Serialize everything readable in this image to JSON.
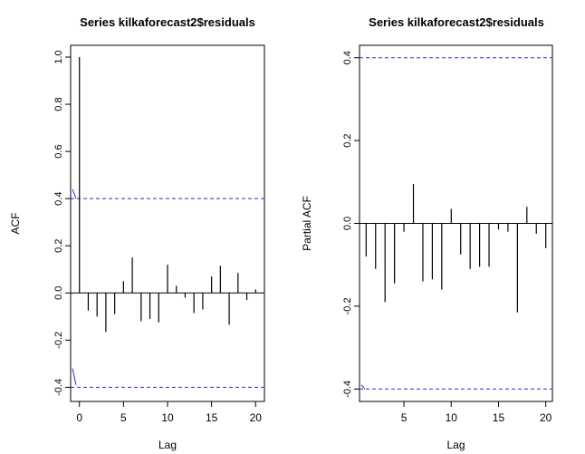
{
  "chart_data": [
    {
      "type": "bar",
      "title": "Series  kilkaforecast2$residuals",
      "xlabel": "Lag",
      "ylabel": "ACF",
      "xlim": [
        -1,
        21
      ],
      "ylim": [
        -0.46,
        1.05
      ],
      "x_ticks": [
        0,
        5,
        10,
        15,
        20
      ],
      "y_ticks": [
        -0.4,
        -0.2,
        0.0,
        0.2,
        0.4,
        0.6,
        0.8,
        1.0
      ],
      "y_tick_labels": [
        "-0.4",
        "-0.2",
        "0.0",
        "0.2",
        "0.4",
        "0.6",
        "0.8",
        "1.0"
      ],
      "confidence_bounds": [
        0.4,
        -0.4
      ],
      "lags": [
        0,
        1,
        2,
        3,
        4,
        5,
        6,
        7,
        8,
        9,
        10,
        11,
        12,
        13,
        14,
        15,
        16,
        17,
        18,
        19,
        20
      ],
      "values": [
        1.0,
        -0.075,
        -0.1,
        -0.165,
        -0.09,
        0.05,
        0.15,
        -0.12,
        -0.11,
        -0.125,
        0.12,
        0.03,
        -0.02,
        -0.085,
        -0.07,
        0.07,
        0.115,
        -0.135,
        0.085,
        -0.03,
        0.015
      ],
      "colors": {
        "bounds": "#2b2bd6",
        "bars": "#000000"
      }
    },
    {
      "type": "bar",
      "title": "Series  kilkaforecast2$residuals",
      "xlabel": "Lag",
      "ylabel": "Partial ACF",
      "xlim": [
        0.3,
        20.7
      ],
      "ylim": [
        -0.43,
        0.43
      ],
      "x_ticks": [
        5,
        10,
        15,
        20
      ],
      "y_ticks": [
        -0.4,
        -0.2,
        0.0,
        0.2,
        0.4
      ],
      "y_tick_labels": [
        "-0.4",
        "-0.2",
        "0.0",
        "0.2",
        "0.4"
      ],
      "confidence_bounds": [
        0.4,
        -0.4
      ],
      "lags": [
        1,
        2,
        3,
        4,
        5,
        6,
        7,
        8,
        9,
        10,
        11,
        12,
        13,
        14,
        15,
        16,
        17,
        18,
        19,
        20
      ],
      "values": [
        -0.08,
        -0.11,
        -0.19,
        -0.145,
        -0.02,
        0.095,
        -0.14,
        -0.135,
        -0.16,
        0.035,
        -0.075,
        -0.11,
        -0.105,
        -0.105,
        -0.015,
        -0.02,
        -0.215,
        0.04,
        -0.025,
        -0.06
      ],
      "colors": {
        "bounds": "#2b2bd6",
        "bars": "#000000"
      }
    }
  ]
}
